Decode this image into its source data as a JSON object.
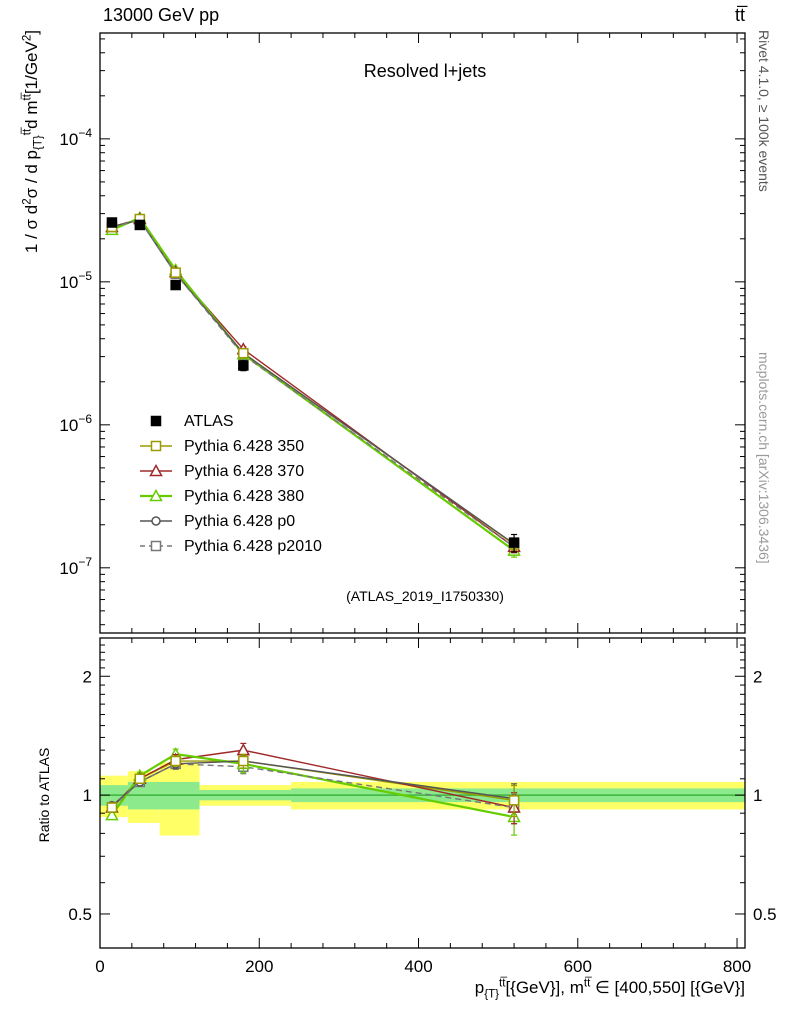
{
  "header": {
    "left": "13000 GeV pp",
    "right": "tt̅"
  },
  "side_notes": {
    "rivet": "Rivet 4.1.0, ≥ 100k events",
    "mcplots": "mcplots.cern.ch [arXiv:1306.3436]"
  },
  "chart_data": {
    "type": "line",
    "title": "Resolved l+jets",
    "watermark": "(ATLAS_2019_I1750330)",
    "ratio_ylabel": "Ratio to ATLAS",
    "ylabel_rich": [
      {
        "t": "1 / σ d"
      },
      {
        "t": "2",
        "s": "sup"
      },
      {
        "t": "σ / d p"
      },
      {
        "t": "{T}",
        "s": "sub"
      },
      {
        "t": "tt̅",
        "s": "sup"
      },
      {
        "t": "d m"
      },
      {
        "t": "tt̅",
        "s": "sup"
      },
      {
        "t": "[1/GeV"
      },
      {
        "t": "2",
        "s": "sup"
      },
      {
        "t": "]"
      }
    ],
    "xlabel_rich": [
      {
        "t": "p"
      },
      {
        "t": "{T}",
        "s": "sub"
      },
      {
        "t": "tt̅",
        "s": "sup"
      },
      {
        "t": "[{GeV}], m"
      },
      {
        "t": "tt̅",
        "s": "sup"
      },
      {
        "t": " ∈ [400,550] [{GeV}]"
      }
    ],
    "xlim": [
      0,
      810
    ],
    "x_ticks": [
      0,
      200,
      400,
      600,
      800
    ],
    "x_minor_step": 40,
    "main_ylim": [
      3.5e-08,
      0.00055
    ],
    "main_y_tick_exponents": [
      -4,
      -5,
      -6,
      -7
    ],
    "ratio_ylim": [
      0.41,
      2.5
    ],
    "ratio_y_ticks": [
      0.5,
      1,
      2
    ],
    "x": [
      15,
      50,
      95,
      180,
      520
    ],
    "series": [
      {
        "name": "ATLAS",
        "color": "#000000",
        "marker": "square",
        "fill": "filled",
        "line": "none",
        "lw": 1.4,
        "in_ratio": false,
        "values": [
          2.6e-05,
          2.5e-05,
          9.5e-06,
          2.6e-06,
          1.5e-07
        ],
        "ratio": [
          1,
          1,
          1,
          1,
          1
        ],
        "err_frac": [
          0.05,
          0.04,
          0.06,
          0.08,
          0.14
        ]
      },
      {
        "name": "Pythia 6.428 350",
        "color": "#9a9a00",
        "marker": "square",
        "fill": "open",
        "line": "solid",
        "lw": 1.4,
        "in_ratio": true,
        "values": [
          2.42e-05,
          2.75e-05,
          1.16e-05,
          3.17e-06,
          1.46e-07
        ],
        "ratio": [
          0.93,
          1.1,
          1.22,
          1.22,
          0.97
        ],
        "err_frac": [
          0.02,
          0.02,
          0.03,
          0.04,
          0.09
        ]
      },
      {
        "name": "Pythia 6.428 370",
        "color": "#a02828",
        "marker": "triangle",
        "fill": "open",
        "line": "solid",
        "lw": 1.4,
        "in_ratio": true,
        "values": [
          2.42e-05,
          2.75e-05,
          1.17e-05,
          3.38e-06,
          1.4e-07
        ],
        "ratio": [
          0.93,
          1.1,
          1.23,
          1.3,
          0.93
        ],
        "err_frac": [
          0.02,
          0.02,
          0.03,
          0.04,
          0.09
        ]
      },
      {
        "name": "Pythia 6.428 380",
        "color": "#66cc00",
        "marker": "triangle",
        "fill": "open",
        "line": "solid",
        "lw": 2.2,
        "in_ratio": true,
        "values": [
          2.31e-05,
          2.8e-05,
          1.21e-05,
          3.12e-06,
          1.32e-07
        ],
        "ratio": [
          0.89,
          1.12,
          1.27,
          1.2,
          0.88
        ],
        "err_frac": [
          0.02,
          0.02,
          0.03,
          0.05,
          0.1
        ]
      },
      {
        "name": "Pythia 6.428 p0",
        "color": "#555555",
        "marker": "circle",
        "fill": "open",
        "line": "solid",
        "lw": 1.4,
        "in_ratio": true,
        "values": [
          2.44e-05,
          2.7e-05,
          1.14e-05,
          3.17e-06,
          1.47e-07
        ],
        "ratio": [
          0.94,
          1.08,
          1.2,
          1.22,
          0.98
        ],
        "err_frac": [
          0.02,
          0.02,
          0.03,
          0.04,
          0.09
        ]
      },
      {
        "name": "Pythia 6.428 p2010",
        "color": "#777777",
        "marker": "square",
        "fill": "open",
        "line": "dashed",
        "lw": 1.4,
        "in_ratio": true,
        "values": [
          2.42e-05,
          2.7e-05,
          1.14e-05,
          3.07e-06,
          1.4e-07
        ],
        "ratio": [
          0.93,
          1.08,
          1.2,
          1.18,
          0.93
        ],
        "err_frac": [
          0.02,
          0.02,
          0.03,
          0.04,
          0.09
        ]
      }
    ],
    "bands": {
      "ref_line_color": "#3db53d",
      "layers": [
        {
          "color": "#ffff66",
          "segments": [
            [
              0,
              35,
              0.88,
              1.12
            ],
            [
              35,
              75,
              0.85,
              1.15
            ],
            [
              75,
              125,
              0.79,
              1.21
            ],
            [
              125,
              240,
              0.94,
              1.06
            ],
            [
              240,
              810,
              0.92,
              1.08
            ]
          ]
        },
        {
          "color": "#8ce98c",
          "segments": [
            [
              0,
              35,
              0.94,
              1.06
            ],
            [
              35,
              125,
              0.92,
              1.08
            ],
            [
              125,
              240,
              0.97,
              1.03
            ],
            [
              240,
              810,
              0.96,
              1.04
            ]
          ]
        }
      ]
    }
  }
}
